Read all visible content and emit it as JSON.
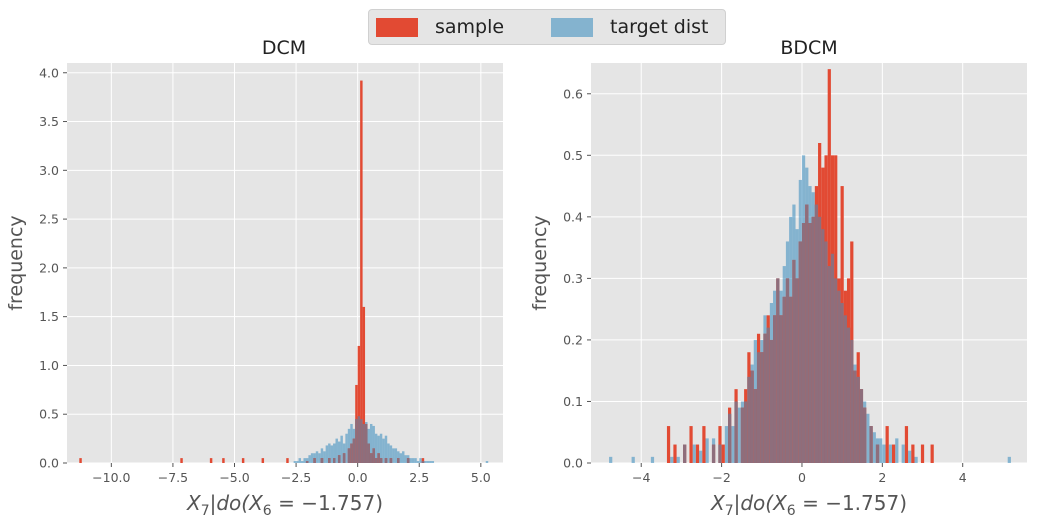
{
  "legend": {
    "sample_label": "sample",
    "target_label": "target dist"
  },
  "colors": {
    "sample": "#E24A33",
    "target": "#348ABD",
    "overlap": "#8E6E7C",
    "panel": "#E5E5E5",
    "grid": "#FFFFFF",
    "tick": "#555555",
    "text": "#222222"
  },
  "chart_data": [
    {
      "type": "histogram",
      "title": "DCM",
      "xlabel": "X_7|do(X_6 = -1.757)",
      "xlabel_parts": {
        "var": "X",
        "var_sub": "7",
        "mid": "|do(",
        "var2": "X",
        "var2_sub": "6",
        "eq": " = −1.757)"
      },
      "ylabel": "frequency",
      "xlim": [
        -11.8,
        5.9
      ],
      "ylim": [
        0,
        4.1
      ],
      "xticks": [
        -10.0,
        -7.5,
        -5.0,
        -2.5,
        0.0,
        2.5,
        5.0
      ],
      "xtick_labels": [
        "−10.0",
        "−7.5",
        "−5.0",
        "−2.5",
        "0.0",
        "2.5",
        "5.0"
      ],
      "yticks": [
        0.0,
        0.5,
        1.0,
        1.5,
        2.0,
        2.5,
        3.0,
        3.5,
        4.0
      ],
      "ytick_labels": [
        "0.0",
        "0.5",
        "1.0",
        "1.5",
        "2.0",
        "2.5",
        "3.0",
        "3.5",
        "4.0"
      ],
      "series": [
        {
          "name": "sample",
          "bin_width": 0.1,
          "bars": [
            [
              -11.3,
              0.05
            ],
            [
              -7.2,
              0.05
            ],
            [
              -6.0,
              0.05
            ],
            [
              -5.5,
              0.05
            ],
            [
              -4.7,
              0.05
            ],
            [
              -3.9,
              0.05
            ],
            [
              -2.9,
              0.05
            ],
            [
              -2.1,
              0.02
            ],
            [
              -1.8,
              0.05
            ],
            [
              -1.5,
              0.05
            ],
            [
              -1.2,
              0.05
            ],
            [
              -1.0,
              0.05
            ],
            [
              -0.8,
              0.08
            ],
            [
              -0.6,
              0.1
            ],
            [
              -0.4,
              0.15
            ],
            [
              -0.3,
              0.2
            ],
            [
              -0.2,
              0.25
            ],
            [
              -0.1,
              0.8
            ],
            [
              0.0,
              1.2
            ],
            [
              0.1,
              3.92
            ],
            [
              0.2,
              1.6
            ],
            [
              0.3,
              0.4
            ],
            [
              0.4,
              0.2
            ],
            [
              0.5,
              0.1
            ],
            [
              0.6,
              0.15
            ],
            [
              0.7,
              0.05
            ],
            [
              0.8,
              0.1
            ],
            [
              0.9,
              0.05
            ],
            [
              1.1,
              0.05
            ],
            [
              1.3,
              0.05
            ],
            [
              1.6,
              0.05
            ],
            [
              2.0,
              0.05
            ],
            [
              2.6,
              0.05
            ]
          ]
        },
        {
          "name": "target dist",
          "bin_width": 0.1,
          "bars": [
            [
              -2.6,
              0.02
            ],
            [
              -2.5,
              0.02
            ],
            [
              -2.4,
              0.05
            ],
            [
              -2.3,
              0.02
            ],
            [
              -2.2,
              0.05
            ],
            [
              -2.1,
              0.05
            ],
            [
              -2.0,
              0.08
            ],
            [
              -1.9,
              0.1
            ],
            [
              -1.8,
              0.1
            ],
            [
              -1.7,
              0.12
            ],
            [
              -1.6,
              0.1
            ],
            [
              -1.5,
              0.15
            ],
            [
              -1.4,
              0.12
            ],
            [
              -1.3,
              0.18
            ],
            [
              -1.2,
              0.2
            ],
            [
              -1.1,
              0.18
            ],
            [
              -1.0,
              0.2
            ],
            [
              -0.9,
              0.25
            ],
            [
              -0.8,
              0.22
            ],
            [
              -0.7,
              0.28
            ],
            [
              -0.6,
              0.2
            ],
            [
              -0.5,
              0.3
            ],
            [
              -0.4,
              0.35
            ],
            [
              -0.3,
              0.4
            ],
            [
              -0.2,
              0.35
            ],
            [
              -0.1,
              0.45
            ],
            [
              0.0,
              0.48
            ],
            [
              0.1,
              0.45
            ],
            [
              0.2,
              0.4
            ],
            [
              0.3,
              0.42
            ],
            [
              0.4,
              0.35
            ],
            [
              0.5,
              0.4
            ],
            [
              0.6,
              0.38
            ],
            [
              0.7,
              0.3
            ],
            [
              0.8,
              0.28
            ],
            [
              0.9,
              0.3
            ],
            [
              1.0,
              0.25
            ],
            [
              1.1,
              0.28
            ],
            [
              1.2,
              0.2
            ],
            [
              1.3,
              0.18
            ],
            [
              1.4,
              0.15
            ],
            [
              1.5,
              0.15
            ],
            [
              1.6,
              0.12
            ],
            [
              1.7,
              0.1
            ],
            [
              1.8,
              0.12
            ],
            [
              1.9,
              0.08
            ],
            [
              2.0,
              0.08
            ],
            [
              2.1,
              0.05
            ],
            [
              2.2,
              0.05
            ],
            [
              2.3,
              0.05
            ],
            [
              2.4,
              0.02
            ],
            [
              2.5,
              0.05
            ],
            [
              2.6,
              0.02
            ],
            [
              2.7,
              0.02
            ],
            [
              2.8,
              0.02
            ],
            [
              2.9,
              0.02
            ],
            [
              3.0,
              0.02
            ],
            [
              5.2,
              0.02
            ]
          ]
        }
      ]
    },
    {
      "type": "histogram",
      "title": "BDCM",
      "xlabel": "X_7|do(X_6 = -1.757)",
      "xlabel_parts": {
        "var": "X",
        "var_sub": "7",
        "mid": "|do(",
        "var2": "X",
        "var2_sub": "6",
        "eq": " = −1.757)"
      },
      "ylabel": "frequency",
      "xlim": [
        -5.25,
        5.6
      ],
      "ylim": [
        0,
        0.65
      ],
      "xticks": [
        -4,
        -2,
        0,
        2,
        4
      ],
      "xtick_labels": [
        "−4",
        "−2",
        "0",
        "2",
        "4"
      ],
      "yticks": [
        0.0,
        0.1,
        0.2,
        0.3,
        0.4,
        0.5,
        0.6
      ],
      "ytick_labels": [
        "0.0",
        "0.1",
        "0.2",
        "0.3",
        "0.4",
        "0.5",
        "0.6"
      ],
      "series": [
        {
          "name": "sample",
          "bin_width": 0.08,
          "bars": [
            [
              -3.36,
              0.06
            ],
            [
              -3.2,
              0.03
            ],
            [
              -2.96,
              0.03
            ],
            [
              -2.8,
              0.06
            ],
            [
              -2.64,
              0.03
            ],
            [
              -2.48,
              0.06
            ],
            [
              -2.24,
              0.03
            ],
            [
              -2.08,
              0.06
            ],
            [
              -2.0,
              0.03
            ],
            [
              -1.84,
              0.09
            ],
            [
              -1.68,
              0.12
            ],
            [
              -1.52,
              0.09
            ],
            [
              -1.44,
              0.12
            ],
            [
              -1.36,
              0.18
            ],
            [
              -1.28,
              0.15
            ],
            [
              -1.2,
              0.12
            ],
            [
              -1.12,
              0.21
            ],
            [
              -1.04,
              0.18
            ],
            [
              -0.96,
              0.21
            ],
            [
              -0.88,
              0.24
            ],
            [
              -0.8,
              0.2
            ],
            [
              -0.72,
              0.24
            ],
            [
              -0.64,
              0.3
            ],
            [
              -0.56,
              0.24
            ],
            [
              -0.48,
              0.27
            ],
            [
              -0.4,
              0.3
            ],
            [
              -0.32,
              0.27
            ],
            [
              -0.24,
              0.33
            ],
            [
              -0.16,
              0.3
            ],
            [
              -0.08,
              0.36
            ],
            [
              0.0,
              0.39
            ],
            [
              0.08,
              0.42
            ],
            [
              0.16,
              0.39
            ],
            [
              0.24,
              0.4
            ],
            [
              0.32,
              0.45
            ],
            [
              0.4,
              0.52
            ],
            [
              0.48,
              0.48
            ],
            [
              0.56,
              0.5
            ],
            [
              0.64,
              0.64
            ],
            [
              0.72,
              0.5
            ],
            [
              0.8,
              0.5
            ],
            [
              0.88,
              0.3
            ],
            [
              0.96,
              0.45
            ],
            [
              1.04,
              0.28
            ],
            [
              1.12,
              0.3
            ],
            [
              1.2,
              0.36
            ],
            [
              1.28,
              0.15
            ],
            [
              1.36,
              0.18
            ],
            [
              1.44,
              0.12
            ],
            [
              1.52,
              0.09
            ],
            [
              1.68,
              0.06
            ],
            [
              1.84,
              0.03
            ],
            [
              2.08,
              0.06
            ],
            [
              2.24,
              0.03
            ],
            [
              2.56,
              0.06
            ],
            [
              2.72,
              0.03
            ],
            [
              2.96,
              0.03
            ],
            [
              3.2,
              0.03
            ]
          ]
        },
        {
          "name": "target dist",
          "bin_width": 0.08,
          "bars": [
            [
              -4.8,
              0.01
            ],
            [
              -4.24,
              0.01
            ],
            [
              -3.76,
              0.01
            ],
            [
              -3.28,
              0.01
            ],
            [
              -3.12,
              0.01
            ],
            [
              -2.96,
              0.03
            ],
            [
              -2.72,
              0.03
            ],
            [
              -2.56,
              0.02
            ],
            [
              -2.4,
              0.04
            ],
            [
              -2.24,
              0.04
            ],
            [
              -2.08,
              0.03
            ],
            [
              -1.92,
              0.06
            ],
            [
              -1.84,
              0.08
            ],
            [
              -1.76,
              0.06
            ],
            [
              -1.68,
              0.1
            ],
            [
              -1.6,
              0.09
            ],
            [
              -1.52,
              0.1
            ],
            [
              -1.44,
              0.1
            ],
            [
              -1.36,
              0.14
            ],
            [
              -1.28,
              0.16
            ],
            [
              -1.2,
              0.2
            ],
            [
              -1.12,
              0.18
            ],
            [
              -1.04,
              0.2
            ],
            [
              -0.96,
              0.24
            ],
            [
              -0.88,
              0.22
            ],
            [
              -0.8,
              0.26
            ],
            [
              -0.72,
              0.28
            ],
            [
              -0.64,
              0.3
            ],
            [
              -0.56,
              0.28
            ],
            [
              -0.48,
              0.32
            ],
            [
              -0.4,
              0.36
            ],
            [
              -0.32,
              0.4
            ],
            [
              -0.24,
              0.42
            ],
            [
              -0.16,
              0.38
            ],
            [
              -0.08,
              0.46
            ],
            [
              0.0,
              0.5
            ],
            [
              0.08,
              0.48
            ],
            [
              0.16,
              0.45
            ],
            [
              0.24,
              0.44
            ],
            [
              0.32,
              0.42
            ],
            [
              0.4,
              0.4
            ],
            [
              0.48,
              0.38
            ],
            [
              0.56,
              0.36
            ],
            [
              0.64,
              0.32
            ],
            [
              0.72,
              0.34
            ],
            [
              0.8,
              0.3
            ],
            [
              0.88,
              0.28
            ],
            [
              0.96,
              0.26
            ],
            [
              1.04,
              0.24
            ],
            [
              1.12,
              0.22
            ],
            [
              1.2,
              0.2
            ],
            [
              1.28,
              0.16
            ],
            [
              1.36,
              0.14
            ],
            [
              1.44,
              0.12
            ],
            [
              1.52,
              0.1
            ],
            [
              1.6,
              0.08
            ],
            [
              1.68,
              0.06
            ],
            [
              1.76,
              0.05
            ],
            [
              1.84,
              0.04
            ],
            [
              1.92,
              0.04
            ],
            [
              2.0,
              0.03
            ],
            [
              2.16,
              0.03
            ],
            [
              2.32,
              0.04
            ],
            [
              2.48,
              0.03
            ],
            [
              2.64,
              0.02
            ],
            [
              2.8,
              0.01
            ],
            [
              5.12,
              0.01
            ]
          ]
        }
      ]
    }
  ]
}
